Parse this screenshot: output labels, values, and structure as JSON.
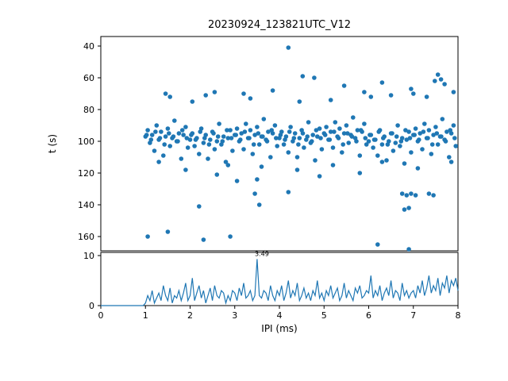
{
  "figure": {
    "title": "20230924_123821UTC_V12",
    "ylabel": "t (s)",
    "xlabel": "IPI (ms)"
  },
  "axes": {
    "xticks": [
      0,
      1,
      2,
      3,
      4,
      5,
      6,
      7,
      8
    ],
    "top_yticks": [
      40,
      60,
      80,
      100,
      120,
      140,
      160
    ],
    "bottom_yticks": [
      0,
      10
    ]
  },
  "chart_data": [
    {
      "type": "scatter",
      "title": "20230924_123821UTC_V12",
      "xlabel": "",
      "ylabel": "t (s)",
      "xlim": [
        0,
        8
      ],
      "ylim": [
        34,
        169
      ],
      "y_axis_inverted": true,
      "color": "#1f77b4",
      "points": [
        [
          1.0,
          97
        ],
        [
          1.05,
          93
        ],
        [
          1.1,
          101
        ],
        [
          1.15,
          96
        ],
        [
          1.2,
          106
        ],
        [
          1.25,
          90
        ],
        [
          1.3,
          99
        ],
        [
          1.35,
          94
        ],
        [
          1.4,
          109
        ],
        [
          1.45,
          97
        ],
        [
          1.5,
          92
        ],
        [
          1.55,
          103
        ],
        [
          1.6,
          98
        ],
        [
          1.65,
          87
        ],
        [
          1.7,
          100
        ],
        [
          1.75,
          95
        ],
        [
          1.8,
          111
        ],
        [
          1.85,
          96
        ],
        [
          1.9,
          91
        ],
        [
          1.95,
          104
        ],
        [
          2.0,
          99
        ],
        [
          2.05,
          95
        ],
        [
          2.1,
          103
        ],
        [
          2.15,
          98
        ],
        [
          2.2,
          108
        ],
        [
          2.25,
          92
        ],
        [
          2.3,
          101
        ],
        [
          2.35,
          96
        ],
        [
          2.4,
          111
        ],
        [
          2.45,
          99
        ],
        [
          2.5,
          94
        ],
        [
          2.55,
          105
        ],
        [
          2.6,
          100
        ],
        [
          2.65,
          89
        ],
        [
          2.7,
          102
        ],
        [
          2.75,
          97
        ],
        [
          2.8,
          113
        ],
        [
          2.85,
          98
        ],
        [
          2.9,
          93
        ],
        [
          2.95,
          106
        ],
        [
          3.0,
          96
        ],
        [
          3.05,
          92
        ],
        [
          3.1,
          100
        ],
        [
          3.15,
          95
        ],
        [
          3.2,
          105
        ],
        [
          3.25,
          89
        ],
        [
          3.3,
          98
        ],
        [
          3.35,
          93
        ],
        [
          3.4,
          108
        ],
        [
          3.45,
          96
        ],
        [
          3.5,
          91
        ],
        [
          3.55,
          102
        ],
        [
          3.6,
          97
        ],
        [
          3.65,
          86
        ],
        [
          3.7,
          99
        ],
        [
          3.75,
          94
        ],
        [
          3.8,
          110
        ],
        [
          3.85,
          95
        ],
        [
          3.9,
          90
        ],
        [
          3.95,
          103
        ],
        [
          4.0,
          98
        ],
        [
          4.05,
          94
        ],
        [
          4.1,
          102
        ],
        [
          4.15,
          97
        ],
        [
          4.2,
          107
        ],
        [
          4.25,
          91
        ],
        [
          4.3,
          100
        ],
        [
          4.35,
          95
        ],
        [
          4.4,
          110
        ],
        [
          4.45,
          98
        ],
        [
          4.5,
          93
        ],
        [
          4.55,
          104
        ],
        [
          4.6,
          99
        ],
        [
          4.65,
          88
        ],
        [
          4.7,
          101
        ],
        [
          4.75,
          96
        ],
        [
          4.8,
          112
        ],
        [
          4.85,
          97
        ],
        [
          4.9,
          92
        ],
        [
          4.95,
          105
        ],
        [
          5.0,
          95
        ],
        [
          5.05,
          91
        ],
        [
          5.1,
          99
        ],
        [
          5.15,
          94
        ],
        [
          5.2,
          104
        ],
        [
          5.25,
          88
        ],
        [
          5.3,
          97
        ],
        [
          5.35,
          92
        ],
        [
          5.4,
          107
        ],
        [
          5.45,
          95
        ],
        [
          5.5,
          90
        ],
        [
          5.55,
          101
        ],
        [
          5.6,
          96
        ],
        [
          5.65,
          85
        ],
        [
          5.7,
          98
        ],
        [
          5.75,
          93
        ],
        [
          5.8,
          109
        ],
        [
          5.85,
          94
        ],
        [
          5.9,
          89
        ],
        [
          5.95,
          102
        ],
        [
          6.0,
          100
        ],
        [
          6.05,
          96
        ],
        [
          6.1,
          104
        ],
        [
          6.15,
          99
        ],
        [
          6.2,
          109
        ],
        [
          6.25,
          93
        ],
        [
          6.3,
          102
        ],
        [
          6.35,
          97
        ],
        [
          6.4,
          112
        ],
        [
          6.45,
          100
        ],
        [
          6.5,
          95
        ],
        [
          6.55,
          106
        ],
        [
          6.6,
          101
        ],
        [
          6.65,
          90
        ],
        [
          6.7,
          103
        ],
        [
          6.75,
          98
        ],
        [
          6.8,
          114
        ],
        [
          6.85,
          99
        ],
        [
          6.9,
          94
        ],
        [
          6.95,
          107
        ],
        [
          7.0,
          96
        ],
        [
          7.05,
          92
        ],
        [
          7.1,
          100
        ],
        [
          7.15,
          95
        ],
        [
          7.2,
          105
        ],
        [
          7.25,
          89
        ],
        [
          7.3,
          98
        ],
        [
          7.35,
          93
        ],
        [
          7.4,
          108
        ],
        [
          7.45,
          96
        ],
        [
          7.5,
          91
        ],
        [
          7.55,
          102
        ],
        [
          7.6,
          97
        ],
        [
          7.65,
          86
        ],
        [
          7.7,
          99
        ],
        [
          7.75,
          94
        ],
        [
          7.8,
          110
        ],
        [
          7.85,
          95
        ],
        [
          7.9,
          90
        ],
        [
          7.95,
          103
        ],
        [
          1.025,
          96
        ],
        [
          1.125,
          99
        ],
        [
          1.225,
          94
        ],
        [
          1.325,
          98
        ],
        [
          1.425,
          102
        ],
        [
          1.525,
          95
        ],
        [
          1.625,
          97
        ],
        [
          1.725,
          100
        ],
        [
          1.825,
          93
        ],
        [
          1.925,
          98
        ],
        [
          2.025,
          96
        ],
        [
          2.125,
          99
        ],
        [
          2.225,
          94
        ],
        [
          2.325,
          98
        ],
        [
          2.425,
          102
        ],
        [
          2.525,
          95
        ],
        [
          2.625,
          97
        ],
        [
          2.725,
          100
        ],
        [
          2.825,
          93
        ],
        [
          2.925,
          98
        ],
        [
          3.025,
          96
        ],
        [
          3.125,
          99
        ],
        [
          3.225,
          94
        ],
        [
          3.325,
          98
        ],
        [
          3.425,
          102
        ],
        [
          3.525,
          95
        ],
        [
          3.625,
          97
        ],
        [
          3.725,
          100
        ],
        [
          3.825,
          93
        ],
        [
          3.925,
          98
        ],
        [
          4.025,
          96
        ],
        [
          4.125,
          99
        ],
        [
          4.225,
          94
        ],
        [
          4.325,
          98
        ],
        [
          4.425,
          102
        ],
        [
          4.525,
          95
        ],
        [
          4.625,
          97
        ],
        [
          4.725,
          100
        ],
        [
          4.825,
          93
        ],
        [
          4.925,
          98
        ],
        [
          5.025,
          96
        ],
        [
          5.125,
          99
        ],
        [
          5.225,
          94
        ],
        [
          5.325,
          98
        ],
        [
          5.425,
          102
        ],
        [
          5.525,
          95
        ],
        [
          5.625,
          97
        ],
        [
          5.725,
          100
        ],
        [
          5.825,
          93
        ],
        [
          5.925,
          98
        ],
        [
          6.025,
          96
        ],
        [
          6.125,
          99
        ],
        [
          6.225,
          94
        ],
        [
          6.325,
          98
        ],
        [
          6.425,
          102
        ],
        [
          6.525,
          95
        ],
        [
          6.625,
          97
        ],
        [
          6.725,
          100
        ],
        [
          6.825,
          93
        ],
        [
          6.925,
          98
        ],
        [
          7.025,
          96
        ],
        [
          7.125,
          99
        ],
        [
          7.225,
          94
        ],
        [
          7.325,
          98
        ],
        [
          7.425,
          102
        ],
        [
          7.525,
          95
        ],
        [
          7.625,
          97
        ],
        [
          7.725,
          100
        ],
        [
          7.825,
          93
        ],
        [
          7.925,
          98
        ],
        [
          1.45,
          70
        ],
        [
          1.55,
          72
        ],
        [
          2.05,
          75
        ],
        [
          2.35,
          71
        ],
        [
          2.55,
          69
        ],
        [
          3.2,
          70
        ],
        [
          3.35,
          73
        ],
        [
          3.85,
          68
        ],
        [
          4.45,
          75
        ],
        [
          5.15,
          74
        ],
        [
          4.52,
          59
        ],
        [
          4.78,
          60
        ],
        [
          5.45,
          65
        ],
        [
          5.9,
          69
        ],
        [
          6.05,
          72
        ],
        [
          6.3,
          63
        ],
        [
          6.5,
          71
        ],
        [
          6.95,
          67
        ],
        [
          7.0,
          70
        ],
        [
          7.3,
          72
        ],
        [
          7.48,
          62
        ],
        [
          7.55,
          58
        ],
        [
          7.62,
          61
        ],
        [
          7.7,
          64
        ],
        [
          7.9,
          69
        ],
        [
          4.2,
          41
        ],
        [
          1.3,
          113
        ],
        [
          1.9,
          118
        ],
        [
          2.6,
          121
        ],
        [
          2.85,
          115
        ],
        [
          3.05,
          125
        ],
        [
          3.5,
          124
        ],
        [
          3.6,
          116
        ],
        [
          4.4,
          118
        ],
        [
          4.9,
          122
        ],
        [
          5.2,
          115
        ],
        [
          5.8,
          120
        ],
        [
          6.3,
          113
        ],
        [
          7.1,
          117
        ],
        [
          7.85,
          113
        ],
        [
          2.2,
          141
        ],
        [
          3.45,
          133
        ],
        [
          3.55,
          140
        ],
        [
          4.2,
          132
        ],
        [
          6.75,
          133
        ],
        [
          6.85,
          134
        ],
        [
          6.95,
          133
        ],
        [
          7.05,
          134
        ],
        [
          7.35,
          133
        ],
        [
          7.45,
          134
        ],
        [
          6.8,
          143
        ],
        [
          6.9,
          142
        ],
        [
          1.05,
          160
        ],
        [
          1.5,
          157
        ],
        [
          2.3,
          162
        ],
        [
          2.9,
          160
        ],
        [
          6.2,
          165
        ],
        [
          6.9,
          168
        ]
      ]
    },
    {
      "type": "line",
      "xlabel": "IPI (ms)",
      "ylabel": "",
      "xlim": [
        0,
        8
      ],
      "ylim": [
        0,
        10.63
      ],
      "color": "#1f77b4",
      "annotation": {
        "text": "3.49",
        "x": 3.5,
        "y": 9.3
      },
      "x_start": 0,
      "x_step": 0.05,
      "values": [
        0,
        0,
        0,
        0,
        0,
        0,
        0,
        0,
        0,
        0,
        0,
        0,
        0,
        0,
        0,
        0,
        0,
        0,
        0,
        0,
        0.5,
        2,
        1,
        3,
        0.5,
        1.5,
        2.5,
        1,
        4,
        2,
        1,
        3.5,
        0.5,
        2,
        1.5,
        3,
        1,
        2.5,
        4.5,
        1,
        2,
        5.5,
        1,
        2.5,
        4,
        1.5,
        3,
        0.5,
        2,
        3.5,
        1,
        4,
        2,
        1.5,
        3,
        2.5,
        0.5,
        2,
        1,
        3,
        2.5,
        1,
        3.5,
        2,
        4.5,
        1.5,
        2,
        3,
        1,
        2,
        9.3,
        2,
        1.5,
        3,
        2.5,
        1,
        4,
        2,
        1,
        3,
        2,
        4,
        1,
        2.5,
        5,
        1.5,
        3,
        2,
        4.5,
        1,
        2,
        3.5,
        1.5,
        2.5,
        1,
        3,
        2,
        5,
        1.5,
        2.5,
        1,
        3,
        2,
        4,
        1.5,
        2.5,
        3.5,
        1,
        2,
        4.5,
        1.5,
        3,
        2,
        1,
        3.5,
        2.5,
        4,
        1.5,
        2,
        3,
        2.5,
        6,
        1.5,
        3,
        2,
        4,
        1,
        2.5,
        3.5,
        2,
        5,
        1.5,
        3,
        2.5,
        1,
        4.5,
        2,
        3,
        1.5,
        2.5,
        3,
        1.5,
        4,
        2.5,
        5,
        2,
        3.5,
        6,
        2.5,
        4,
        3,
        5.5,
        2,
        4.5,
        3.5,
        6,
        2.5,
        5,
        4,
        5.5,
        3
      ]
    }
  ]
}
